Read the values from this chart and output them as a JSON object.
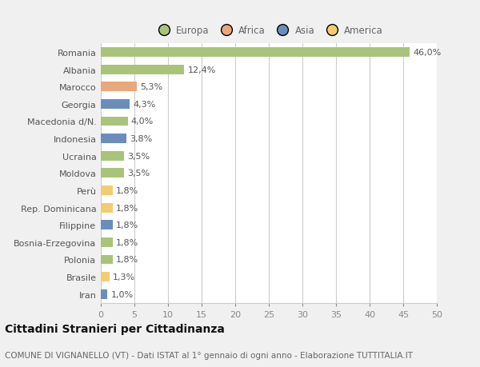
{
  "categories": [
    "Iran",
    "Brasile",
    "Polonia",
    "Bosnia-Erzegovina",
    "Filippine",
    "Rep. Dominicana",
    "Perù",
    "Moldova",
    "Ucraina",
    "Indonesia",
    "Macedonia d/N.",
    "Georgia",
    "Marocco",
    "Albania",
    "Romania"
  ],
  "values": [
    1.0,
    1.3,
    1.8,
    1.8,
    1.8,
    1.8,
    1.8,
    3.5,
    3.5,
    3.8,
    4.0,
    4.3,
    5.3,
    12.4,
    46.0
  ],
  "labels": [
    "1,0%",
    "1,3%",
    "1,8%",
    "1,8%",
    "1,8%",
    "1,8%",
    "1,8%",
    "3,5%",
    "3,5%",
    "3,8%",
    "4,0%",
    "4,3%",
    "5,3%",
    "12,4%",
    "46,0%"
  ],
  "colors": [
    "#6b8dbe",
    "#f2cc6e",
    "#a9c47a",
    "#a9c47a",
    "#6b8dbe",
    "#f2cc6e",
    "#f2cc6e",
    "#a9c47a",
    "#a9c47a",
    "#6b8dbe",
    "#a9c47a",
    "#6b8dbe",
    "#e8a87c",
    "#a9c47a",
    "#a9c47a"
  ],
  "legend_labels": [
    "Europa",
    "Africa",
    "Asia",
    "America"
  ],
  "legend_colors": [
    "#a9c47a",
    "#e8a87c",
    "#6b8dbe",
    "#f2cc6e"
  ],
  "xlim": [
    0,
    50
  ],
  "xticks": [
    0,
    5,
    10,
    15,
    20,
    25,
    30,
    35,
    40,
    45,
    50
  ],
  "title": "Cittadini Stranieri per Cittadinanza",
  "subtitle": "COMUNE DI VIGNANELLO (VT) - Dati ISTAT al 1° gennaio di ogni anno - Elaborazione TUTTITALIA.IT",
  "outer_bg_color": "#f0f0f0",
  "plot_bg_color": "#ffffff",
  "grid_color": "#cccccc",
  "title_fontsize": 10,
  "subtitle_fontsize": 7.5,
  "tick_fontsize": 8,
  "label_fontsize": 8
}
